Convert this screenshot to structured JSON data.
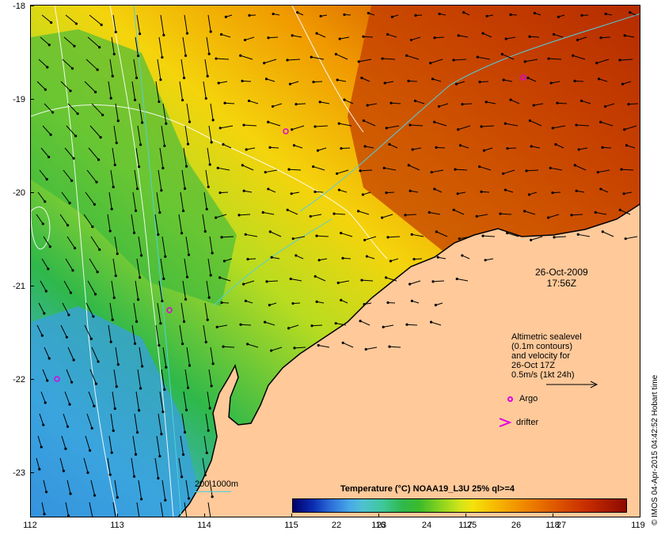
{
  "axes": {
    "x_ticks": [
      "112",
      "113",
      "114",
      "115",
      "116",
      "117",
      "118",
      "119"
    ],
    "y_ticks": [
      "-18",
      "-19",
      "-20",
      "-21",
      "-22",
      "-23"
    ]
  },
  "date": {
    "day": "26-Oct-2009",
    "time": "17:56Z"
  },
  "legend": {
    "lines": [
      "Altimetric sealevel",
      "(0.1m contours)",
      "and velocity for",
      "26-Oct 17Z",
      "0.5m/s (1kt 24h)"
    ],
    "argo_label": "Argo",
    "drifter_label": "drifter",
    "contour_key": "200  1000m"
  },
  "colorbar": {
    "title": "Temperature (°C) NOAA19_L3U 25% ql>=4",
    "labels": [
      "22",
      "23",
      "24",
      "25",
      "26",
      "27"
    ]
  },
  "credit": "© IMOS 04-Apr-2015 04:42:52 Hobart time",
  "colors": {
    "land": "#ffc99a",
    "cold": "#0a2cb0",
    "warm": "#c72d00",
    "argo": "#e000e0",
    "contour": "#4fd0e0"
  }
}
